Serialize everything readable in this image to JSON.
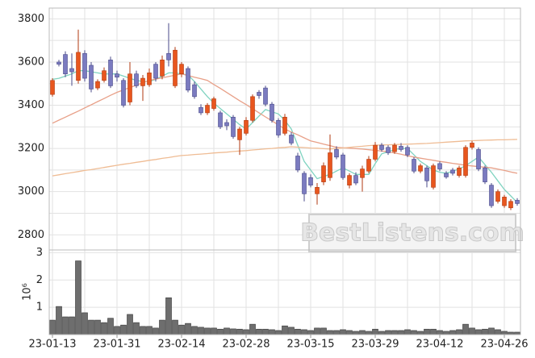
{
  "chart_data": [
    {
      "type": "candlestick",
      "ylim": [
        2730,
        3850
      ],
      "yticks": [
        2800,
        3000,
        3200,
        3400,
        3600,
        3800
      ],
      "yminorticks": [
        2900,
        3100,
        3300,
        3500,
        3700
      ],
      "grid": true,
      "up_color": "#e8561e",
      "down_color": "#7b7bc0",
      "watermark": "BestListens.com",
      "open": [
        3450,
        3600,
        3635,
        3570,
        3515,
        3640,
        3585,
        3480,
        3515,
        3610,
        3545,
        3515,
        3415,
        3545,
        3490,
        3495,
        3590,
        3535,
        3640,
        3490,
        3545,
        3570,
        3495,
        3390,
        3365,
        3385,
        3365,
        3320,
        3345,
        3240,
        3270,
        3330,
        3460,
        3480,
        3405,
        3330,
        3270,
        3262,
        3165,
        3085,
        3065,
        2990,
        3045,
        3065,
        3195,
        3170,
        3030,
        3075,
        3065,
        3095,
        3150,
        3215,
        3205,
        3185,
        3210,
        3205,
        3150,
        3095,
        3110,
        3020,
        3130,
        3085,
        3100,
        3075,
        3075,
        3205,
        3195,
        3110,
        3030,
        2955,
        2935,
        2925,
        2960
      ],
      "high": [
        3525,
        3610,
        3650,
        3640,
        3750,
        3655,
        3600,
        3520,
        3575,
        3625,
        3560,
        3525,
        3600,
        3560,
        3540,
        3570,
        3600,
        3630,
        3780,
        3670,
        3600,
        3580,
        3510,
        3405,
        3410,
        3440,
        3375,
        3335,
        3355,
        3300,
        3345,
        3450,
        3470,
        3490,
        3415,
        3340,
        3360,
        3275,
        3180,
        3095,
        3080,
        3040,
        3135,
        3265,
        3210,
        3180,
        3085,
        3090,
        3120,
        3165,
        3230,
        3225,
        3215,
        3225,
        3225,
        3215,
        3160,
        3130,
        3120,
        3130,
        3140,
        3095,
        3110,
        3120,
        3215,
        3235,
        3205,
        3120,
        3040,
        3010,
        2985,
        2965,
        2970
      ],
      "low": [
        3440,
        3580,
        3530,
        3490,
        3500,
        3510,
        3460,
        3470,
        3505,
        3480,
        3510,
        3390,
        3400,
        3480,
        3420,
        3485,
        3510,
        3520,
        3580,
        3480,
        3530,
        3460,
        3430,
        3355,
        3355,
        3375,
        3290,
        3285,
        3245,
        3170,
        3260,
        3320,
        3430,
        3395,
        3320,
        3250,
        3260,
        3215,
        3090,
        2955,
        3020,
        2940,
        3030,
        3050,
        3150,
        3055,
        3015,
        3030,
        3000,
        3085,
        3140,
        3185,
        3170,
        3175,
        3185,
        3160,
        3085,
        3085,
        3020,
        3010,
        3095,
        3060,
        3075,
        3065,
        3065,
        3195,
        3095,
        3035,
        2925,
        2945,
        2925,
        2915,
        2935
      ],
      "close": [
        3515,
        3590,
        3545,
        3555,
        3645,
        3525,
        3475,
        3510,
        3560,
        3490,
        3530,
        3400,
        3545,
        3490,
        3525,
        3550,
        3525,
        3610,
        3610,
        3655,
        3590,
        3470,
        3440,
        3365,
        3400,
        3430,
        3300,
        3305,
        3255,
        3290,
        3330,
        3440,
        3445,
        3405,
        3330,
        3262,
        3345,
        3225,
        3100,
        2990,
        3030,
        3020,
        3120,
        3180,
        3160,
        3065,
        3075,
        3040,
        3105,
        3150,
        3215,
        3195,
        3180,
        3215,
        3195,
        3170,
        3095,
        3120,
        3050,
        3120,
        3105,
        3068,
        3085,
        3110,
        3205,
        3225,
        3105,
        3045,
        2935,
        3000,
        2975,
        2955,
        2945
      ],
      "series": [
        {
          "color": "#7fd3c0",
          "values": [
            3520,
            3525,
            3535,
            3545,
            3560,
            3560,
            3555,
            3550,
            3545,
            3545,
            3545,
            3535,
            3525,
            3515,
            3510,
            3510,
            3520,
            3535,
            3550,
            3550,
            3545,
            3540,
            3510,
            3475,
            3440,
            3410,
            3385,
            3360,
            3335,
            3310,
            3290,
            3320,
            3350,
            3380,
            3370,
            3360,
            3330,
            3290,
            3215,
            3140,
            3100,
            3060,
            3070,
            3080,
            3095,
            3110,
            3095,
            3080,
            3080,
            3080,
            3130,
            3175,
            3185,
            3195,
            3200,
            3200,
            3170,
            3140,
            3120,
            3100,
            3090,
            3085,
            3095,
            3105,
            3120,
            3140,
            3160,
            3125,
            3090,
            3050,
            3010,
            2980,
            2950
          ]
        },
        {
          "color": "#e8a088",
          "values": [
            3317,
            3331,
            3345,
            3359,
            3373,
            3388,
            3402,
            3417,
            3431,
            3446,
            3460,
            3471,
            3482,
            3493,
            3504,
            3515,
            3521,
            3527,
            3533,
            3539,
            3545,
            3538,
            3530,
            3523,
            3515,
            3496,
            3478,
            3459,
            3440,
            3421,
            3403,
            3384,
            3365,
            3346,
            3328,
            3309,
            3290,
            3276,
            3263,
            3249,
            3235,
            3228,
            3220,
            3213,
            3205,
            3203,
            3201,
            3199,
            3197,
            3194,
            3191,
            3188,
            3185,
            3179,
            3173,
            3166,
            3160,
            3155,
            3150,
            3145,
            3140,
            3136,
            3131,
            3127,
            3122,
            3119,
            3116,
            3113,
            3110,
            3104,
            3098,
            3091,
            3085
          ]
        },
        {
          "color": "#efbc94",
          "values": [
            3073,
            3078,
            3083,
            3088,
            3093,
            3098,
            3102,
            3107,
            3112,
            3117,
            3122,
            3127,
            3131,
            3136,
            3140,
            3145,
            3149,
            3154,
            3158,
            3163,
            3167,
            3169,
            3172,
            3174,
            3176,
            3179,
            3181,
            3183,
            3186,
            3188,
            3190,
            3193,
            3195,
            3198,
            3200,
            3203,
            3205,
            3208,
            3206,
            3204,
            3202,
            3201,
            3199,
            3197,
            3200,
            3202,
            3205,
            3208,
            3210,
            3213,
            3215,
            3216,
            3217,
            3218,
            3219,
            3220,
            3221,
            3222,
            3223,
            3225,
            3227,
            3229,
            3231,
            3233,
            3235,
            3236,
            3237,
            3238,
            3239,
            3240,
            3240,
            3241,
            3242
          ]
        }
      ]
    },
    {
      "type": "bar",
      "y_label": "10⁶",
      "ylim": [
        0,
        3.1
      ],
      "yticks": [
        1,
        2,
        3
      ],
      "grid": true,
      "color": "#6e6e6e",
      "categories": [
        "23-01-13",
        null,
        null,
        null,
        null,
        null,
        null,
        null,
        null,
        null,
        "23-01-31",
        null,
        null,
        null,
        null,
        null,
        null,
        null,
        null,
        null,
        "23-02-14",
        null,
        null,
        null,
        null,
        null,
        null,
        null,
        null,
        null,
        "23-02-28",
        null,
        null,
        null,
        null,
        null,
        null,
        null,
        null,
        null,
        "23-03-15",
        null,
        null,
        null,
        null,
        null,
        null,
        null,
        null,
        null,
        "23-03-29",
        null,
        null,
        null,
        null,
        null,
        null,
        null,
        null,
        null,
        "23-04-12",
        null,
        null,
        null,
        null,
        null,
        null,
        null,
        null,
        null,
        "23-04-26",
        null,
        null
      ],
      "values": [
        0.53,
        1.03,
        0.65,
        0.65,
        2.7,
        0.8,
        0.53,
        0.53,
        0.44,
        0.6,
        0.3,
        0.35,
        0.74,
        0.44,
        0.3,
        0.3,
        0.24,
        0.53,
        1.35,
        0.53,
        0.35,
        0.41,
        0.3,
        0.27,
        0.24,
        0.24,
        0.2,
        0.24,
        0.21,
        0.2,
        0.18,
        0.38,
        0.2,
        0.2,
        0.18,
        0.15,
        0.32,
        0.27,
        0.2,
        0.18,
        0.15,
        0.24,
        0.24,
        0.15,
        0.15,
        0.18,
        0.15,
        0.12,
        0.15,
        0.12,
        0.2,
        0.12,
        0.15,
        0.15,
        0.15,
        0.18,
        0.15,
        0.12,
        0.2,
        0.2,
        0.15,
        0.12,
        0.15,
        0.18,
        0.38,
        0.24,
        0.18,
        0.2,
        0.24,
        0.18,
        0.12,
        0.09,
        0.09
      ]
    }
  ]
}
